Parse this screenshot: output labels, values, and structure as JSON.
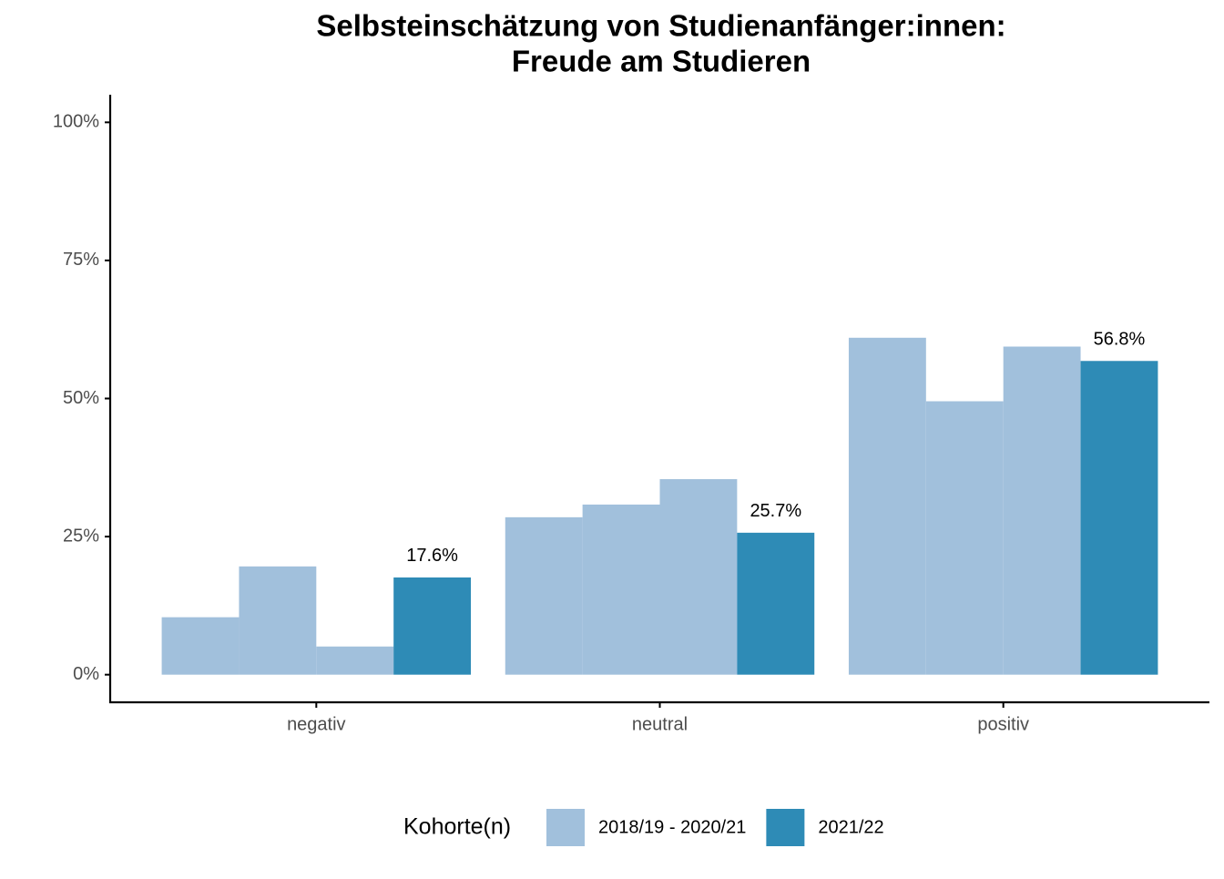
{
  "chart_data": {
    "type": "bar",
    "title": "Selbsteinschätzung von Studienanfänger:innen:",
    "subtitle": "Freude am Studieren",
    "categories": [
      "negativ",
      "neutral",
      "positiv"
    ],
    "legend_title": "Kohorte(n)",
    "series": [
      {
        "name": "2018/19 - 2020/21",
        "color": "#a1c0dc",
        "values": [
          [
            10.4,
            19.6,
            5.1
          ],
          [
            28.5,
            30.8,
            35.4
          ],
          [
            61.0,
            49.5,
            59.4
          ]
        ]
      },
      {
        "name": "2021/22",
        "color": "#2e8bb6",
        "values": [
          17.6,
          25.7,
          56.8
        ],
        "value_labels": [
          "17.6%",
          "25.7%",
          "56.8%"
        ]
      }
    ],
    "ylim": [
      -5,
      105
    ],
    "yticks": [
      {
        "value": 0,
        "label": "0%"
      },
      {
        "value": 25,
        "label": "25%"
      },
      {
        "value": 50,
        "label": "50%"
      },
      {
        "value": 75,
        "label": "75%"
      },
      {
        "value": 100,
        "label": "100%"
      }
    ]
  }
}
